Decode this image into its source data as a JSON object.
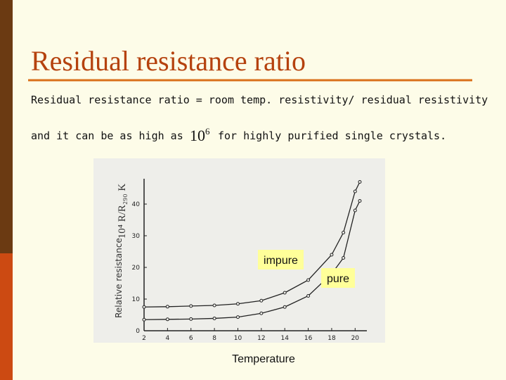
{
  "slide": {
    "title": "Residual resistance ratio",
    "line1": "Residual resistance ratio = room temp. resistivity/ residual resistivity",
    "line2_start": "and it can be as high as",
    "power_base": "10",
    "power_exp": "6",
    "line2_end": "for highly purified single crystals."
  },
  "chart_data": {
    "type": "line",
    "xlabel": "Temperature",
    "ylabel": "Relative resistance",
    "ylabel_scan": "10⁴ R/R₂₉₀ K",
    "x": [
      2,
      4,
      6,
      8,
      10,
      12,
      14,
      16,
      18,
      19,
      20,
      20.4
    ],
    "series": [
      {
        "name": "impure",
        "color": "#222222",
        "values": [
          7.5,
          7.6,
          7.8,
          8,
          8.5,
          9.5,
          12,
          16,
          24,
          31,
          44,
          47
        ]
      },
      {
        "name": "pure",
        "color": "#222222",
        "values": [
          3.5,
          3.6,
          3.7,
          3.9,
          4.3,
          5.5,
          7.5,
          11,
          18,
          23,
          38,
          41
        ]
      }
    ],
    "xlim": [
      2,
      21
    ],
    "ylim": [
      0,
      48
    ],
    "xticks": [
      2,
      4,
      6,
      8,
      10,
      12,
      14,
      16,
      18,
      20
    ],
    "yticks": [
      0,
      10,
      20,
      30,
      40
    ]
  }
}
